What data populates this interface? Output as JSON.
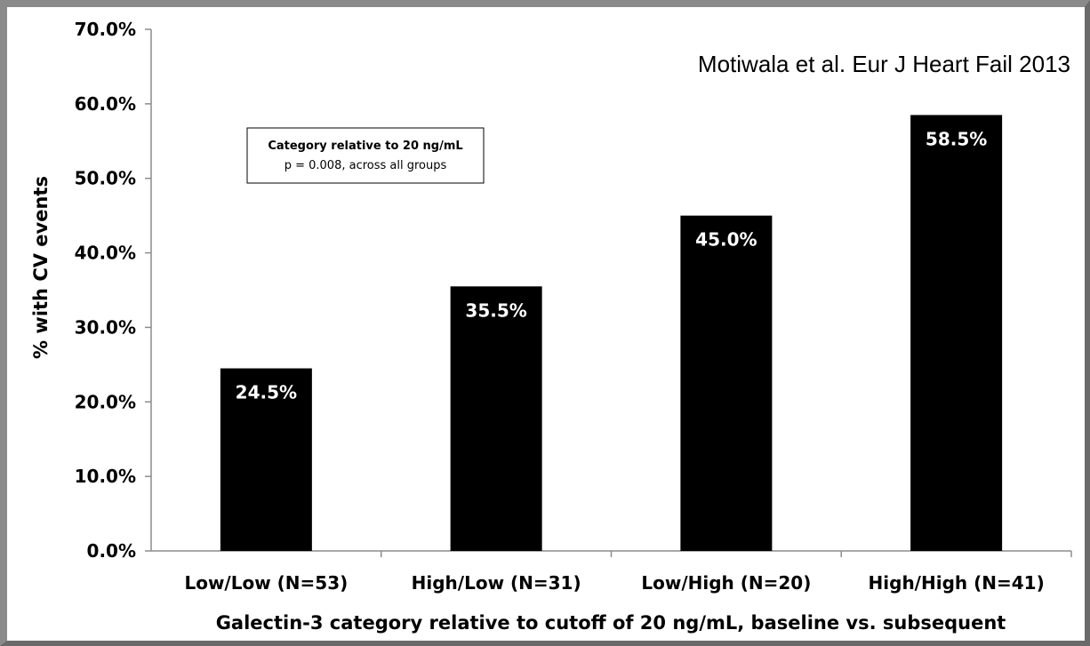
{
  "citation": "Motiwala et al. Eur J Heart Fail 2013",
  "annotation_box": {
    "title": "Category relative to 20 ng/mL",
    "subtitle": "p = 0.008, across all groups"
  },
  "chart_data": {
    "type": "bar",
    "categories": [
      "Low/Low (N=53)",
      "High/Low (N=31)",
      "Low/High (N=20)",
      "High/High (N=41)"
    ],
    "values": [
      24.5,
      35.5,
      45.0,
      58.5
    ],
    "data_labels": [
      "24.5%",
      "35.5%",
      "45.0%",
      "58.5%"
    ],
    "title": "",
    "xlabel": "Galectin-3 category relative to cutoff of 20 ng/mL, baseline vs. subsequent",
    "ylabel": "% with CV events",
    "ylim": [
      0,
      70
    ],
    "yticks": [
      "0.0%",
      "10.0%",
      "20.0%",
      "30.0%",
      "40.0%",
      "50.0%",
      "60.0%",
      "70.0%"
    ],
    "grid": false,
    "bar_color": "#000000",
    "label_color": "#ffffff"
  }
}
